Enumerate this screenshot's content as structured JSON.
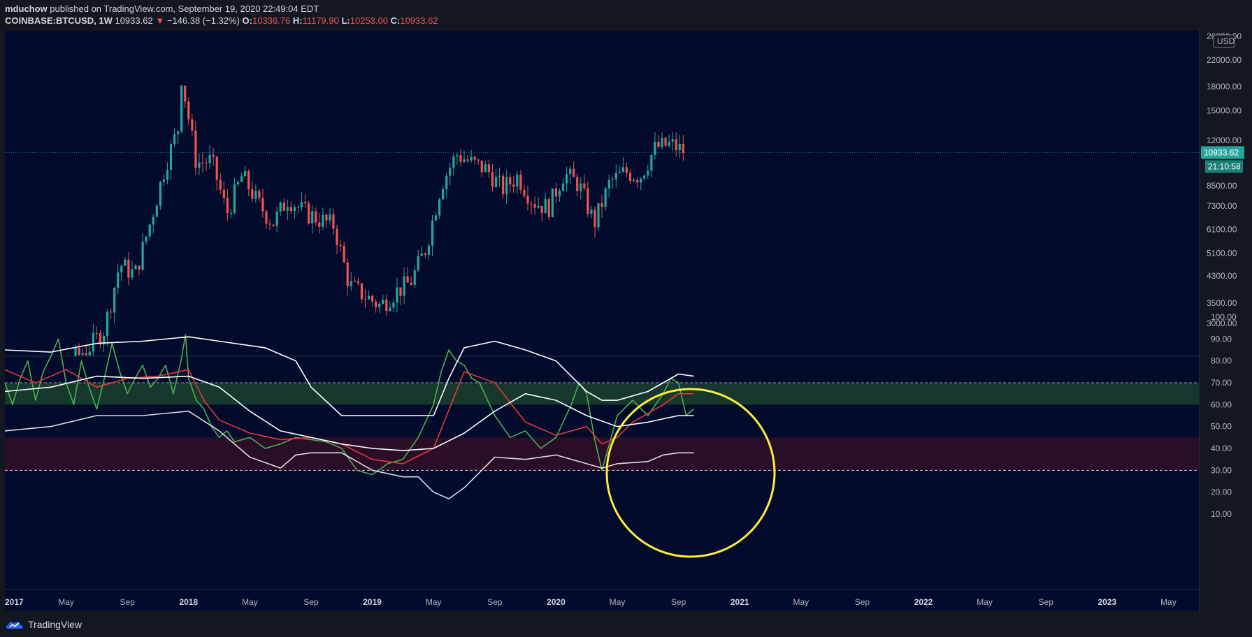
{
  "header": {
    "author": "mduchow",
    "published_text": "published on TradingView.com, September 19, 2020 22:49:04 EDT",
    "symbol": "COINBASE:BTCUSD, 1W",
    "last": "10933.62",
    "change_arrow": "▼",
    "change": "−146.38 (−1.32%)",
    "o_label": "O:",
    "o_value": "10336.76",
    "h_label": "H:",
    "h_value": "11179.90",
    "l_label": "L:",
    "l_value": "10253.00",
    "c_label": "C:",
    "c_value": "10933.62"
  },
  "footer": {
    "brand": "TradingView",
    "brand_icon": "tradingview-logo-icon"
  },
  "colors": {
    "background": "#020b2c",
    "up": "#26a69a",
    "down": "#ef5350",
    "rsi": "#4caf50",
    "signal": "#e53935",
    "bands": "#ffffff",
    "overbought_zone": "#16382f",
    "oversold_zone": "#2a0d26",
    "highlight_circle": "#ffeb3b"
  },
  "chart_data": [
    {
      "type": "candlestick",
      "price_scale": "log",
      "currency": "USD",
      "last_price_label": "10933.62",
      "countdown_label": "21:10:58",
      "y_ticks": [
        3000,
        3500,
        4300,
        5100,
        6100,
        7300,
        8500,
        12000,
        15000,
        18000,
        22000
      ],
      "y_tick_labels": [
        "3000.00",
        "3500.00",
        "4300.00",
        "5100.00",
        "6100.00",
        "7300.00",
        "8500.00",
        "12000.00",
        "15000.00",
        "18000.00",
        "22000.00"
      ],
      "top_tick_label": "26000.00",
      "x_labels": [
        "2017",
        "May",
        "Sep",
        "2018",
        "May",
        "Sep",
        "2019",
        "May",
        "Sep",
        "2020",
        "May",
        "Sep",
        "2021",
        "May",
        "Sep",
        "2022",
        "May",
        "Sep",
        "2023",
        "May"
      ],
      "x_label_months": [
        0,
        4,
        8,
        12,
        16,
        20,
        24,
        28,
        32,
        36,
        40,
        44,
        48,
        52,
        56,
        60,
        64,
        68,
        72,
        76
      ],
      "anchor_points": [
        [
          "2017-01",
          970
        ],
        [
          "2017-02",
          1190
        ],
        [
          "2017-03",
          1080
        ],
        [
          "2017-04",
          1350
        ],
        [
          "2017-05",
          2300
        ],
        [
          "2017-06",
          2500
        ],
        [
          "2017-07",
          2870
        ],
        [
          "2017-08",
          4700
        ],
        [
          "2017-09",
          4340
        ],
        [
          "2017-10",
          6450
        ],
        [
          "2017-11",
          10000
        ],
        [
          "2017-12",
          14000
        ],
        [
          "2017-12-17",
          19500
        ],
        [
          "2018-01",
          10100
        ],
        [
          "2018-02",
          10300
        ],
        [
          "2018-03",
          6900
        ],
        [
          "2018-04",
          9200
        ],
        [
          "2018-05",
          7500
        ],
        [
          "2018-06",
          6400
        ],
        [
          "2018-07",
          7750
        ],
        [
          "2018-08",
          7000
        ],
        [
          "2018-09",
          6600
        ],
        [
          "2018-10",
          6300
        ],
        [
          "2018-11",
          4000
        ],
        [
          "2018-12",
          3700
        ],
        [
          "2019-01",
          3430
        ],
        [
          "2019-02",
          3800
        ],
        [
          "2019-03",
          4100
        ],
        [
          "2019-04",
          5300
        ],
        [
          "2019-05",
          8600
        ],
        [
          "2019-06",
          10800
        ],
        [
          "2019-07",
          10100
        ],
        [
          "2019-08",
          9600
        ],
        [
          "2019-09",
          8300
        ],
        [
          "2019-10",
          9150
        ],
        [
          "2019-11",
          7550
        ],
        [
          "2019-12",
          7190
        ],
        [
          "2020-01",
          9350
        ],
        [
          "2020-02",
          8600
        ],
        [
          "2020-03",
          6400
        ],
        [
          "2020-04",
          8700
        ],
        [
          "2020-05",
          9450
        ],
        [
          "2020-06",
          9140
        ],
        [
          "2020-07",
          11350
        ],
        [
          "2020-08",
          11650
        ],
        [
          "2020-09",
          10933
        ]
      ]
    },
    {
      "type": "line",
      "indicator": "RSI with bollinger bands",
      "y_ticks": [
        10,
        20,
        30,
        40,
        50,
        60,
        70,
        80,
        90,
        100
      ],
      "y_tick_labels": [
        "10.00",
        "20.00",
        "30.00",
        "40.00",
        "50.00",
        "60.00",
        "70.00",
        "80.00",
        "90.00",
        "100.00"
      ],
      "overbought_band": [
        60,
        70
      ],
      "oversold_band": [
        30,
        45
      ],
      "series": [
        {
          "key": "rsi",
          "x_months": [
            0,
            0.5,
            1,
            1.5,
            2,
            2.5,
            3,
            3.5,
            4,
            4.5,
            5,
            5.5,
            6,
            6.5,
            7,
            7.5,
            8,
            8.5,
            9,
            9.5,
            10,
            10.5,
            11,
            11.5,
            11.8,
            12,
            12.5,
            13,
            13.5,
            14,
            14.5,
            15,
            16,
            17,
            18,
            19,
            20,
            21,
            22,
            23,
            24,
            25,
            26,
            27,
            28,
            28.5,
            29,
            29.5,
            30,
            30.5,
            31,
            32,
            33,
            34,
            35,
            36,
            37,
            37.5,
            38,
            38.5,
            39,
            40,
            41,
            42,
            43,
            43.5,
            44,
            44.5,
            45
          ],
          "values": [
            70,
            60,
            72,
            80,
            62,
            75,
            82,
            90,
            70,
            60,
            80,
            68,
            58,
            72,
            88,
            75,
            65,
            72,
            78,
            68,
            72,
            78,
            65,
            80,
            92,
            72,
            62,
            58,
            50,
            45,
            48,
            43,
            45,
            40,
            42,
            45,
            44,
            43,
            40,
            30,
            28,
            33,
            35,
            45,
            60,
            75,
            85,
            80,
            78,
            72,
            70,
            55,
            45,
            48,
            40,
            45,
            60,
            70,
            65,
            45,
            30,
            55,
            62,
            55,
            65,
            72,
            70,
            55,
            58
          ]
        },
        {
          "key": "signal",
          "x_months": [
            0,
            2,
            4,
            6,
            8,
            10,
            12,
            13,
            14,
            16,
            18,
            20,
            22,
            24,
            26,
            28,
            30,
            32,
            34,
            36,
            38,
            39,
            40,
            41,
            42,
            43,
            44,
            45
          ],
          "values": [
            76,
            70,
            76,
            68,
            72,
            73,
            76,
            62,
            53,
            47,
            44,
            45,
            42,
            35,
            33,
            40,
            75,
            70,
            52,
            46,
            50,
            42,
            45,
            52,
            56,
            60,
            65,
            65
          ]
        },
        {
          "key": "upper",
          "x_months": [
            0,
            3,
            6,
            9,
            12,
            14,
            17,
            19,
            20,
            22,
            24,
            26,
            28,
            29,
            30,
            32,
            34,
            36,
            38,
            39,
            40,
            42,
            43,
            44,
            45
          ],
          "values": [
            85,
            84,
            88,
            89,
            91,
            89,
            86,
            80,
            68,
            55,
            55,
            55,
            55,
            72,
            86,
            89,
            85,
            80,
            66,
            62,
            62,
            66,
            70,
            74,
            73
          ]
        },
        {
          "key": "middle",
          "x_months": [
            0,
            3,
            6,
            9,
            12,
            14,
            16,
            18,
            20,
            22,
            24,
            26,
            28,
            30,
            32,
            34,
            36,
            38,
            40,
            42,
            44,
            45
          ],
          "values": [
            66,
            68,
            73,
            72,
            73,
            68,
            57,
            48,
            45,
            42,
            40,
            39,
            40,
            47,
            57,
            65,
            62,
            55,
            50,
            52,
            55,
            55
          ]
        },
        {
          "key": "lower",
          "x_months": [
            0,
            3,
            6,
            9,
            12,
            14,
            16,
            18,
            19,
            20,
            22,
            24,
            26,
            27,
            28,
            29,
            30,
            32,
            34,
            36,
            38,
            39,
            40,
            42,
            43,
            44,
            45
          ],
          "values": [
            48,
            50,
            55,
            55,
            57,
            48,
            36,
            31,
            37,
            38,
            38,
            30,
            27,
            27,
            20,
            17,
            22,
            36,
            35,
            37,
            33,
            31,
            33,
            34,
            37,
            38,
            38
          ]
        }
      ]
    }
  ]
}
